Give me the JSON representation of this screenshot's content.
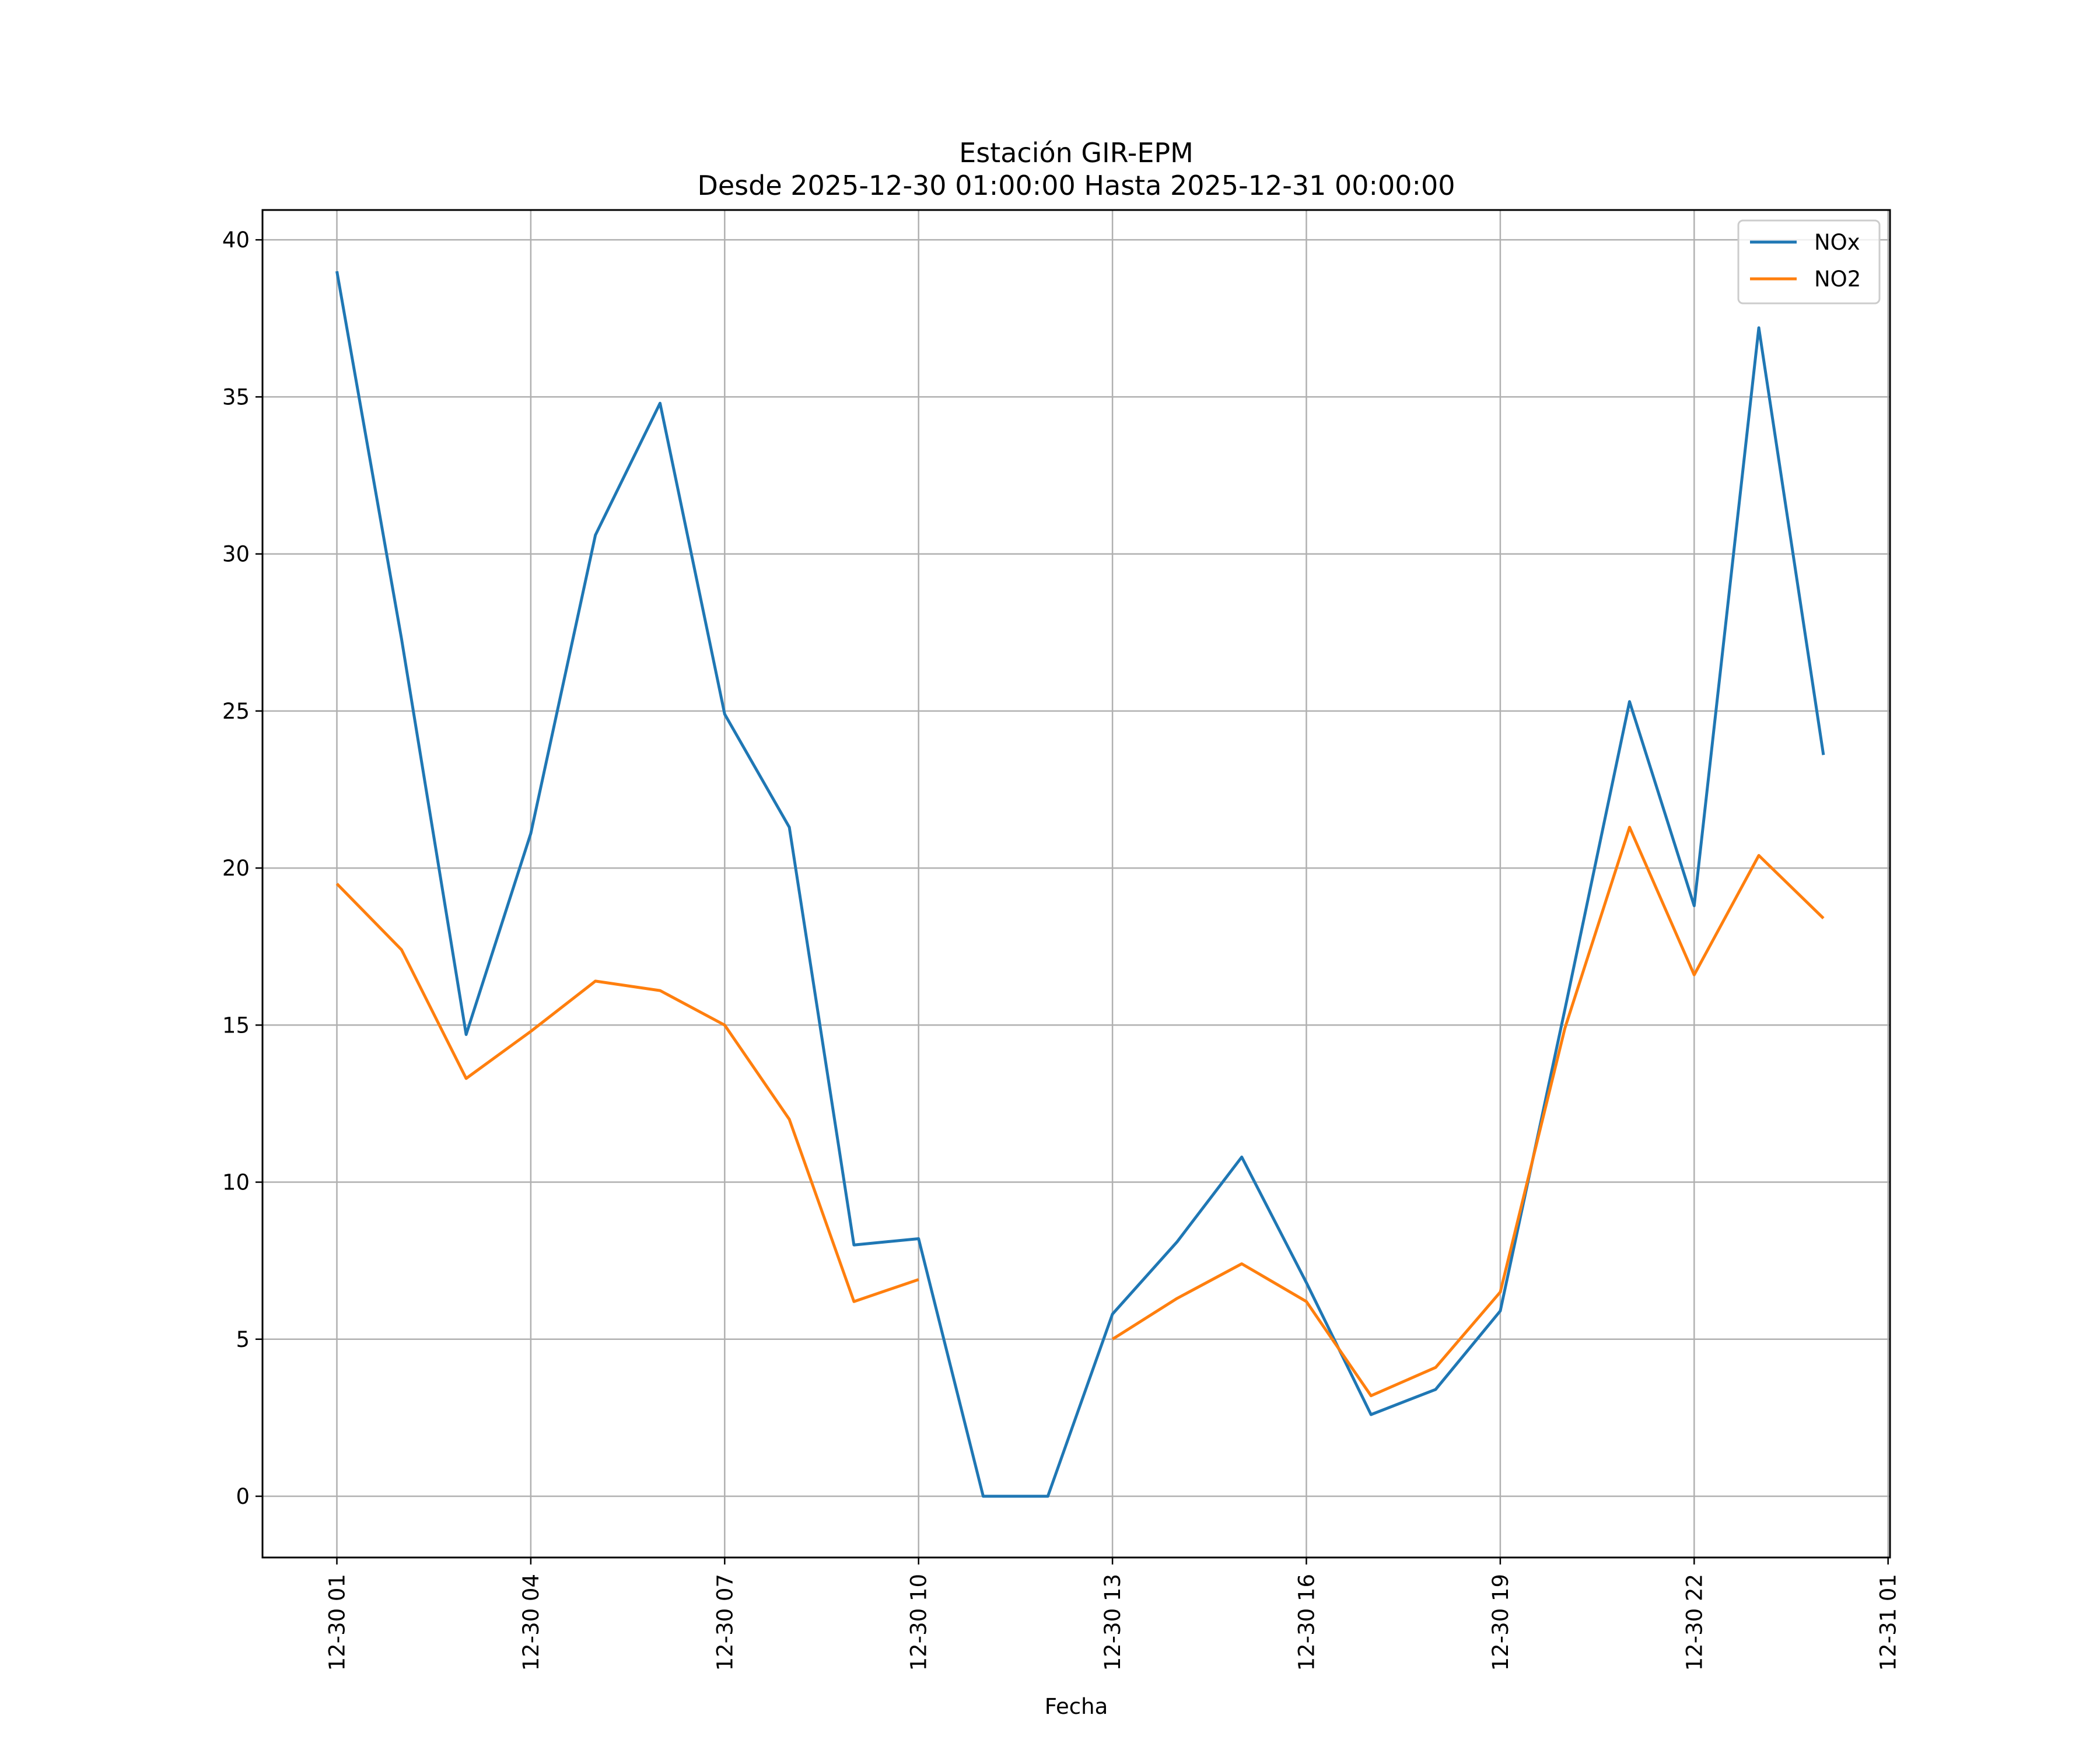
{
  "chart_data": {
    "type": "line",
    "title": "Estación GIR-EPM",
    "subtitle": "Desde 2025-12-30 01:00:00 Hasta 2025-12-31 00:00:00",
    "xlabel": "Fecha",
    "ylabel": "",
    "ylim": [
      -1.95,
      40.95
    ],
    "yticks": [
      0,
      5,
      10,
      15,
      20,
      25,
      30,
      35,
      40
    ],
    "x_tick_labels": [
      "12-30 01",
      "12-30 04",
      "12-30 07",
      "12-30 10",
      "12-30 13",
      "12-30 16",
      "12-30 19",
      "12-30 22",
      "12-31 01"
    ],
    "x": [
      "2025-12-30 01:00",
      "2025-12-30 02:00",
      "2025-12-30 03:00",
      "2025-12-30 04:00",
      "2025-12-30 05:00",
      "2025-12-30 06:00",
      "2025-12-30 07:00",
      "2025-12-30 08:00",
      "2025-12-30 09:00",
      "2025-12-30 10:00",
      "2025-12-30 11:00",
      "2025-12-30 12:00",
      "2025-12-30 13:00",
      "2025-12-30 14:00",
      "2025-12-30 15:00",
      "2025-12-30 16:00",
      "2025-12-30 17:00",
      "2025-12-30 18:00",
      "2025-12-30 19:00",
      "2025-12-30 20:00",
      "2025-12-30 21:00",
      "2025-12-30 22:00",
      "2025-12-30 23:00",
      "2025-12-31 00:00"
    ],
    "series": [
      {
        "name": "NOx",
        "color": "#1f77b4",
        "values": [
          39.0,
          27.3,
          14.7,
          21.1,
          30.6,
          34.8,
          24.9,
          21.3,
          8.0,
          8.2,
          0.0,
          0.0,
          5.8,
          8.1,
          10.8,
          6.8,
          2.6,
          3.4,
          5.9,
          15.5,
          25.3,
          18.8,
          37.2,
          23.6
        ]
      },
      {
        "name": "NO2",
        "color": "#ff7f0e",
        "values": [
          19.5,
          17.4,
          13.3,
          14.8,
          16.4,
          16.1,
          15.0,
          12.0,
          6.2,
          6.9,
          null,
          null,
          5.0,
          6.3,
          7.4,
          6.2,
          3.2,
          4.1,
          6.5,
          14.9,
          21.3,
          16.6,
          20.4,
          18.4
        ]
      }
    ],
    "grid": true,
    "legend_position": "top-right"
  }
}
